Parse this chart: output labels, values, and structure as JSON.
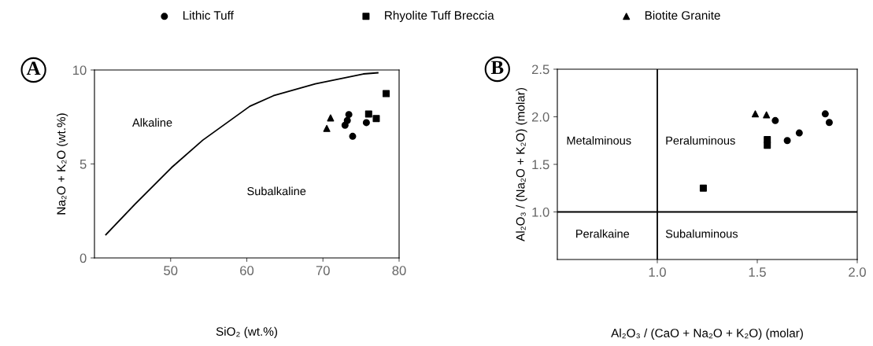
{
  "chart_data": [
    {
      "type": "scatter",
      "xlabel": "SiO₂ (wt.%)",
      "ylabel": "Na₂O + K₂O (wt.%)",
      "xlim": [
        40,
        80
      ],
      "ylim": [
        0,
        10
      ],
      "xticks": [
        50,
        60,
        70,
        80
      ],
      "yticks": [
        0,
        5,
        10
      ],
      "grid": false,
      "legend": "top",
      "annotations": [
        "A",
        "Alkaline",
        "Subalkaline"
      ],
      "series": [
        {
          "name": "Lithic Tuff",
          "color": "#000000",
          "marker": "circle",
          "x": [
            73.4,
            73.2,
            72.9,
            73.9,
            75.7
          ],
          "values": [
            7.63,
            7.31,
            7.06,
            6.47,
            7.2
          ]
        },
        {
          "name": "Rhyolite Tuff Breccia",
          "color": "#000000",
          "marker": "square",
          "x": [
            78.3,
            76.0,
            77.0
          ],
          "values": [
            8.74,
            7.66,
            7.42
          ]
        },
        {
          "name": "Biotite Granite",
          "color": "#000000",
          "marker": "triangle",
          "x": [
            71.0,
            70.5
          ],
          "values": [
            7.45,
            6.89
          ]
        },
        {
          "type": "line",
          "color": "#000000",
          "marker": "none",
          "x": [
            41.5,
            45.3,
            50.1,
            54.2,
            60.4,
            63.5,
            69.0,
            75.3,
            77.2
          ],
          "values": [
            1.24,
            2.85,
            4.8,
            6.26,
            8.07,
            8.63,
            9.26,
            9.79,
            9.85
          ]
        }
      ]
    },
    {
      "type": "scatter",
      "xlabel": "Al₂O₃ / (CaO + Na₂O + K₂O) (molar)",
      "ylabel": "Al₂O₃ / (Na₂O + K₂O) (molar)",
      "xlim": [
        0.5,
        2.0
      ],
      "ylim": [
        0.5,
        2.5
      ],
      "xticks": [
        {
          "value": 1.0,
          "label": "1.0"
        },
        {
          "value": 1.5,
          "label": "1.5"
        },
        {
          "value": 2.0,
          "label": "2.0"
        }
      ],
      "yticks": [
        {
          "value": 1.0,
          "label": "1.0"
        },
        {
          "value": 1.5,
          "label": "1.5"
        },
        {
          "value": 2.0,
          "label": "2.0"
        },
        {
          "value": 2.5,
          "label": "2.5"
        }
      ],
      "grid": false,
      "annotations": [
        "B",
        "Metalminous",
        "Peraluminous",
        "Peralkaine",
        "Subaluminous"
      ],
      "series": [
        {
          "color": "#000000",
          "marker": "circle",
          "x": [
            1.59,
            1.65,
            1.71,
            1.84,
            1.86
          ],
          "values": [
            1.96,
            1.75,
            1.83,
            2.03,
            1.94
          ]
        },
        {
          "color": "#000000",
          "marker": "square",
          "x": [
            1.55,
            1.55,
            1.23
          ],
          "values": [
            1.76,
            1.7,
            1.25
          ]
        },
        {
          "color": "#000000",
          "marker": "triangle",
          "x": [
            1.49,
            1.546
          ],
          "values": [
            2.03,
            2.02
          ]
        },
        {
          "type": "line",
          "color": "#000000",
          "marker": "none",
          "x": [
            1.0,
            1.0
          ],
          "values": [
            0.5,
            2.5
          ]
        },
        {
          "type": "line",
          "color": "#000000",
          "marker": "none",
          "x": [
            0.5,
            2.0
          ],
          "values": [
            1.0,
            1.0
          ]
        }
      ]
    }
  ]
}
